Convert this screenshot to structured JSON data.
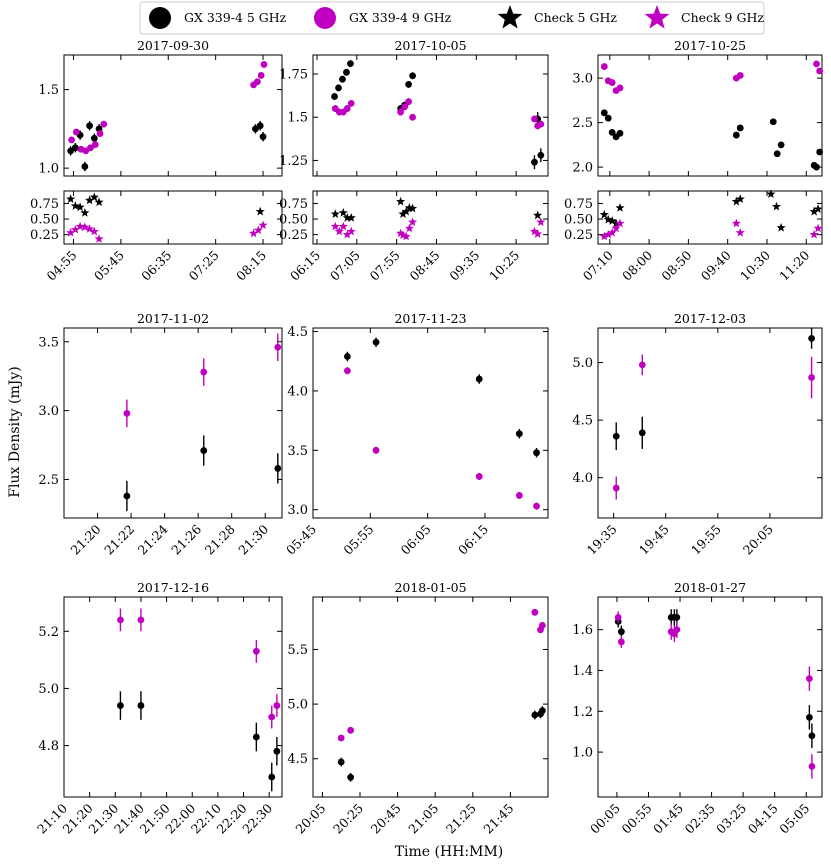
{
  "colors": {
    "gx": "#000000",
    "check5": "#000000",
    "nine": "#c000c0"
  },
  "legend": [
    {
      "label": "GX 339-4 5 GHz",
      "marker": "circle",
      "color": "#000000"
    },
    {
      "label": "GX 339-4 9 GHz",
      "marker": "circle",
      "color": "#c000c0"
    },
    {
      "label": "Check 5 GHz",
      "marker": "star",
      "color": "#000000"
    },
    {
      "label": "Check 9 GHz",
      "marker": "star",
      "color": "#c000c0"
    }
  ],
  "ylabel": "Flux Density (mJy)",
  "xlabel": "Time (HH:MM)",
  "chart_data": [
    {
      "type": "scatter",
      "title": "2017-09-30",
      "xlim": [
        "04:45",
        "08:35"
      ],
      "xticks": [
        "04:55",
        "05:45",
        "06:35",
        "07:25",
        "08:15"
      ],
      "main": {
        "ylim": [
          0.95,
          1.72
        ],
        "yticks": [
          1.0,
          1.5
        ],
        "series": [
          {
            "name": "GX 339-4 5 GHz",
            "x": [
              "04:52",
              "04:57",
              "05:02",
              "05:07",
              "05:12",
              "05:17",
              "05:22",
              "08:07",
              "08:12",
              "08:15"
            ],
            "y": [
              1.11,
              1.13,
              1.21,
              1.01,
              1.27,
              1.19,
              1.25,
              1.25,
              1.27,
              1.2
            ],
            "err": [
              0.03,
              0.03,
              0.03,
              0.03,
              0.03,
              0.03,
              0.03,
              0.03,
              0.03,
              0.03
            ]
          },
          {
            "name": "GX 339-4 9 GHz",
            "x": [
              "04:53",
              "04:58",
              "05:03",
              "05:08",
              "05:13",
              "05:18",
              "05:23",
              "05:27",
              "08:05",
              "08:09",
              "08:13",
              "08:16"
            ],
            "y": [
              1.18,
              1.23,
              1.12,
              1.11,
              1.13,
              1.15,
              1.22,
              1.28,
              1.53,
              1.55,
              1.59,
              1.66
            ],
            "err": [
              0.02,
              0.02,
              0.02,
              0.02,
              0.02,
              0.02,
              0.02,
              0.02,
              0.02,
              0.02,
              0.02,
              0.02
            ]
          }
        ]
      },
      "check": {
        "ylim": [
          0.1,
          0.95
        ],
        "yticks": [
          0.25,
          0.5,
          0.75
        ],
        "series": [
          {
            "name": "Check 5 GHz",
            "x": [
              "04:52",
              "04:57",
              "05:02",
              "05:07",
              "05:12",
              "05:17",
              "05:22",
              "08:12"
            ],
            "y": [
              0.82,
              0.71,
              0.69,
              0.6,
              0.8,
              0.85,
              0.77,
              0.62
            ]
          },
          {
            "name": "Check 9 GHz",
            "x": [
              "04:52",
              "04:57",
              "05:02",
              "05:07",
              "05:12",
              "05:17",
              "05:22",
              "08:05",
              "08:10",
              "08:15"
            ],
            "y": [
              0.28,
              0.33,
              0.38,
              0.37,
              0.34,
              0.3,
              0.18,
              0.27,
              0.32,
              0.4
            ]
          }
        ]
      }
    },
    {
      "type": "scatter",
      "title": "2017-10-05",
      "xlim": [
        "06:10",
        "11:05"
      ],
      "xticks": [
        "06:15",
        "07:05",
        "07:55",
        "08:45",
        "09:35",
        "10:25"
      ],
      "main": {
        "ylim": [
          1.16,
          1.86
        ],
        "yticks": [
          1.25,
          1.5,
          1.75
        ],
        "series": [
          {
            "name": "GX 339-4 5 GHz",
            "x": [
              "06:37",
              "06:42",
              "06:47",
              "06:52",
              "06:57",
              "08:00",
              "08:05",
              "08:10",
              "08:15",
              "10:48",
              "10:52",
              "10:56"
            ],
            "y": [
              1.62,
              1.67,
              1.72,
              1.76,
              1.81,
              1.55,
              1.57,
              1.69,
              1.74,
              1.24,
              1.49,
              1.28
            ],
            "err": [
              0.02,
              0.02,
              0.02,
              0.02,
              0.02,
              0.02,
              0.02,
              0.02,
              0.02,
              0.04,
              0.04,
              0.04
            ]
          },
          {
            "name": "GX 339-4 9 GHz",
            "x": [
              "06:38",
              "06:43",
              "06:48",
              "06:53",
              "06:58",
              "08:00",
              "08:05",
              "08:10",
              "08:15",
              "10:48",
              "10:52",
              "10:56"
            ],
            "y": [
              1.55,
              1.53,
              1.53,
              1.55,
              1.58,
              1.53,
              1.56,
              1.59,
              1.5,
              1.49,
              1.45,
              1.46
            ],
            "err": [
              0.02,
              0.02,
              0.02,
              0.02,
              0.02,
              0.02,
              0.02,
              0.02,
              0.02,
              0.02,
              0.02,
              0.02
            ]
          }
        ]
      },
      "check": {
        "ylim": [
          0.1,
          0.95
        ],
        "yticks": [
          0.25,
          0.5,
          0.75
        ],
        "series": [
          {
            "name": "Check 5 GHz",
            "x": [
              "06:38",
              "06:48",
              "06:53",
              "06:58",
              "08:00",
              "08:03",
              "08:07",
              "08:11",
              "08:15",
              "10:52"
            ],
            "y": [
              0.58,
              0.6,
              0.52,
              0.52,
              0.78,
              0.58,
              0.62,
              0.68,
              0.67,
              0.56
            ]
          },
          {
            "name": "Check 9 GHz",
            "x": [
              "06:38",
              "06:43",
              "06:48",
              "06:53",
              "06:58",
              "08:00",
              "08:03",
              "08:07",
              "08:11",
              "08:15",
              "10:48",
              "10:52",
              "10:56"
            ],
            "y": [
              0.38,
              0.3,
              0.38,
              0.25,
              0.3,
              0.27,
              0.24,
              0.22,
              0.35,
              0.45,
              0.3,
              0.26,
              0.45
            ]
          }
        ]
      }
    },
    {
      "type": "scatter",
      "title": "2017-10-25",
      "xlim": [
        "06:55",
        "11:40"
      ],
      "xticks": [
        "07:10",
        "08:00",
        "08:50",
        "09:40",
        "10:30",
        "11:20"
      ],
      "main": {
        "ylim": [
          1.9,
          3.26
        ],
        "yticks": [
          2.0,
          2.5,
          3.0
        ],
        "series": [
          {
            "name": "GX 339-4 5 GHz",
            "x": [
              "07:03",
              "07:08",
              "07:13",
              "07:18",
              "07:23",
              "09:51",
              "09:56",
              "10:38",
              "10:43",
              "10:48",
              "11:30",
              "11:33",
              "11:37"
            ],
            "y": [
              2.61,
              2.55,
              2.39,
              2.34,
              2.38,
              2.36,
              2.44,
              2.51,
              2.15,
              2.25,
              2.02,
              2.0,
              2.17
            ],
            "err": [
              0.03,
              0.03,
              0.03,
              0.03,
              0.03,
              0.03,
              0.03,
              0.03,
              0.03,
              0.03,
              0.03,
              0.03,
              0.03
            ]
          },
          {
            "name": "GX 339-4 9 GHz",
            "x": [
              "07:03",
              "07:08",
              "07:13",
              "07:18",
              "07:23",
              "09:51",
              "09:56",
              "11:33",
              "11:37"
            ],
            "y": [
              3.13,
              2.97,
              2.95,
              2.86,
              2.89,
              3.0,
              3.03,
              3.16,
              3.08
            ],
            "err": [
              0.03,
              0.03,
              0.03,
              0.03,
              0.03,
              0.03,
              0.03,
              0.03,
              0.03
            ]
          }
        ]
      },
      "check": {
        "ylim": [
          0.1,
          0.95
        ],
        "yticks": [
          0.25,
          0.5,
          0.75
        ],
        "series": [
          {
            "name": "Check 5 GHz",
            "x": [
              "07:03",
              "07:08",
              "07:13",
              "07:18",
              "07:23",
              "09:51",
              "09:56",
              "10:35",
              "10:42",
              "10:48",
              "11:30",
              "11:35"
            ],
            "y": [
              0.57,
              0.49,
              0.47,
              0.43,
              0.68,
              0.78,
              0.82,
              0.9,
              0.7,
              0.36,
              0.62,
              0.66
            ]
          },
          {
            "name": "Check 9 GHz",
            "x": [
              "07:03",
              "07:08",
              "07:13",
              "07:18",
              "07:23",
              "09:51",
              "09:56",
              "11:30",
              "11:35"
            ],
            "y": [
              0.22,
              0.25,
              0.28,
              0.35,
              0.43,
              0.43,
              0.28,
              0.25,
              0.35
            ]
          }
        ]
      }
    },
    {
      "type": "scatter",
      "title": "2017-11-02",
      "xlim": [
        "21:18",
        "21:31"
      ],
      "xticks": [
        "21:20",
        "21:22",
        "21:24",
        "21:26",
        "21:28",
        "21:30"
      ],
      "main": {
        "ylim": [
          2.22,
          3.6
        ],
        "yticks": [
          2.5,
          3.0,
          3.5
        ],
        "series": [
          {
            "name": "GX 339-4 5 GHz",
            "x": [
              "21:21:45",
              "21:26:20",
              "21:30:45"
            ],
            "y": [
              2.38,
              2.71,
              2.58
            ],
            "err": [
              0.11,
              0.11,
              0.11
            ]
          },
          {
            "name": "GX 339-4 9 GHz",
            "x": [
              "21:21:45",
              "21:26:20",
              "21:30:45"
            ],
            "y": [
              2.98,
              3.28,
              3.46
            ],
            "err": [
              0.1,
              0.1,
              0.1
            ]
          }
        ]
      }
    },
    {
      "type": "scatter",
      "title": "2017-11-23",
      "xlim": [
        "05:45",
        "06:26"
      ],
      "xticks": [
        "05:45",
        "05:55",
        "06:05",
        "06:15"
      ],
      "main": {
        "ylim": [
          2.93,
          4.53
        ],
        "yticks": [
          3.0,
          3.5,
          4.0,
          4.5
        ],
        "series": [
          {
            "name": "GX 339-4 5 GHz",
            "x": [
              "05:51",
              "05:56",
              "06:14",
              "06:21",
              "06:24"
            ],
            "y": [
              4.29,
              4.41,
              4.1,
              3.64,
              3.48
            ],
            "err": [
              0.04,
              0.04,
              0.04,
              0.04,
              0.04
            ]
          },
          {
            "name": "GX 339-4 9 GHz",
            "x": [
              "05:51",
              "05:56",
              "06:14",
              "06:21",
              "06:24"
            ],
            "y": [
              4.17,
              3.5,
              3.28,
              3.12,
              3.03
            ],
            "err": [
              0.03,
              0.03,
              0.03,
              0.03,
              0.03
            ]
          }
        ]
      }
    },
    {
      "type": "scatter",
      "title": "2017-12-03",
      "xlim": [
        "19:32",
        "20:15"
      ],
      "xticks": [
        "19:35",
        "19:45",
        "19:55",
        "20:05"
      ],
      "main": {
        "ylim": [
          3.65,
          5.3
        ],
        "yticks": [
          4.0,
          4.5,
          5.0
        ],
        "series": [
          {
            "name": "GX 339-4 5 GHz",
            "x": [
              "19:35:30",
              "19:40:30",
              "20:13:00"
            ],
            "y": [
              4.36,
              4.39,
              5.21
            ],
            "err": [
              0.12,
              0.14,
              0.09
            ]
          },
          {
            "name": "GX 339-4 9 GHz",
            "x": [
              "19:35:30",
              "19:40:30",
              "20:13:00"
            ],
            "y": [
              3.91,
              4.98,
              4.87
            ],
            "err": [
              0.1,
              0.09,
              0.18
            ]
          }
        ]
      }
    },
    {
      "type": "scatter",
      "title": "2017-12-16",
      "xlim": [
        "21:10",
        "22:35"
      ],
      "xticks": [
        "21:10",
        "21:20",
        "21:30",
        "21:40",
        "21:50",
        "22:00",
        "22:10",
        "22:20",
        "22:30"
      ],
      "main": {
        "ylim": [
          4.62,
          5.32
        ],
        "yticks": [
          4.8,
          5.0,
          5.2
        ],
        "series": [
          {
            "name": "GX 339-4 5 GHz",
            "x": [
              "21:32",
              "21:40",
              "22:25",
              "22:31",
              "22:33"
            ],
            "y": [
              4.94,
              4.94,
              4.83,
              4.69,
              4.78
            ],
            "err": [
              0.05,
              0.05,
              0.05,
              0.05,
              0.05
            ]
          },
          {
            "name": "GX 339-4 9 GHz",
            "x": [
              "21:32",
              "21:40",
              "22:25",
              "22:31",
              "22:33"
            ],
            "y": [
              5.24,
              5.24,
              5.13,
              4.9,
              4.94
            ],
            "err": [
              0.04,
              0.04,
              0.04,
              0.04,
              0.04
            ]
          }
        ]
      }
    },
    {
      "type": "scatter",
      "title": "2018-01-05",
      "xlim": [
        "20:00",
        "22:05"
      ],
      "xticks": [
        "20:05",
        "20:25",
        "20:45",
        "21:05",
        "21:25",
        "21:45"
      ],
      "main": {
        "ylim": [
          4.15,
          5.98
        ],
        "yticks": [
          4.5,
          5.0,
          5.5
        ],
        "series": [
          {
            "name": "GX 339-4 5 GHz",
            "x": [
              "20:15",
              "20:20",
              "21:58",
              "22:01",
              "22:02"
            ],
            "y": [
              4.47,
              4.33,
              4.9,
              4.91,
              4.94
            ],
            "err": [
              0.04,
              0.04,
              0.04,
              0.04,
              0.04
            ]
          },
          {
            "name": "GX 339-4 9 GHz",
            "x": [
              "20:15",
              "20:20",
              "21:58",
              "22:01",
              "22:02"
            ],
            "y": [
              4.69,
              4.76,
              5.84,
              5.68,
              5.72
            ],
            "err": [
              0.03,
              0.03,
              0.03,
              0.03,
              0.03
            ]
          }
        ]
      }
    },
    {
      "type": "scatter",
      "title": "2018-01-27",
      "xlim": [
        "23:35",
        "05:30"
      ],
      "xticks": [
        "00:05",
        "00:55",
        "01:45",
        "02:35",
        "03:25",
        "04:15",
        "05:05"
      ],
      "main": {
        "ylim": [
          0.78,
          1.76
        ],
        "yticks": [
          1.0,
          1.2,
          1.4,
          1.6
        ],
        "series": [
          {
            "name": "GX 339-4 5 GHz",
            "x": [
              "00:07",
              "00:12",
              "01:31",
              "01:36",
              "01:40",
              "05:10",
              "05:14"
            ],
            "y": [
              1.64,
              1.59,
              1.66,
              1.66,
              1.66,
              1.17,
              1.08
            ],
            "err": [
              0.03,
              0.03,
              0.04,
              0.04,
              0.04,
              0.06,
              0.06
            ]
          },
          {
            "name": "GX 339-4 9 GHz",
            "x": [
              "00:07",
              "00:12",
              "01:31",
              "01:36",
              "01:40",
              "05:10",
              "05:14"
            ],
            "y": [
              1.66,
              1.54,
              1.59,
              1.58,
              1.6,
              1.36,
              0.93
            ],
            "err": [
              0.03,
              0.03,
              0.04,
              0.04,
              0.04,
              0.06,
              0.06
            ]
          }
        ]
      }
    }
  ]
}
